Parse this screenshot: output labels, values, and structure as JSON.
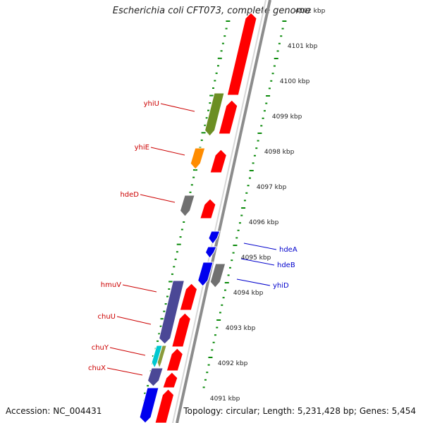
{
  "title": "Escherichia coli CFT073, complete genome",
  "footer": {
    "accession": "Accession: NC_004431",
    "topology": "Topology: circular; Length: 5,231,428 bp; Genes: 5,454"
  },
  "colors": {
    "forward_strand": "#ff0000",
    "reverse_strand": "#0000ee",
    "gc_tick": "#0a8a0a",
    "backbone": "#8c8c8c",
    "forward_label": "#cc0000",
    "reverse_label": "#0000cc"
  },
  "scale_labels": [
    "4102 kbp",
    "4101 kbp",
    "4100 kbp",
    "4099 kbp",
    "4098 kbp",
    "4097 kbp",
    "4096 kbp",
    "4095 kbp",
    "4094 kbp",
    "4093 kbp",
    "4092 kbp",
    "4091 kbp"
  ],
  "gene_labels": [
    {
      "name": "yhiU",
      "strand": "forward"
    },
    {
      "name": "yhiE",
      "strand": "forward"
    },
    {
      "name": "hdeD",
      "strand": "forward"
    },
    {
      "name": "hmuV",
      "strand": "forward"
    },
    {
      "name": "chuU",
      "strand": "forward"
    },
    {
      "name": "chuY",
      "strand": "forward"
    },
    {
      "name": "chuX",
      "strand": "forward"
    },
    {
      "name": "hdeA",
      "strand": "reverse"
    },
    {
      "name": "hdeB",
      "strand": "reverse"
    },
    {
      "name": "yhiD",
      "strand": "reverse"
    }
  ]
}
